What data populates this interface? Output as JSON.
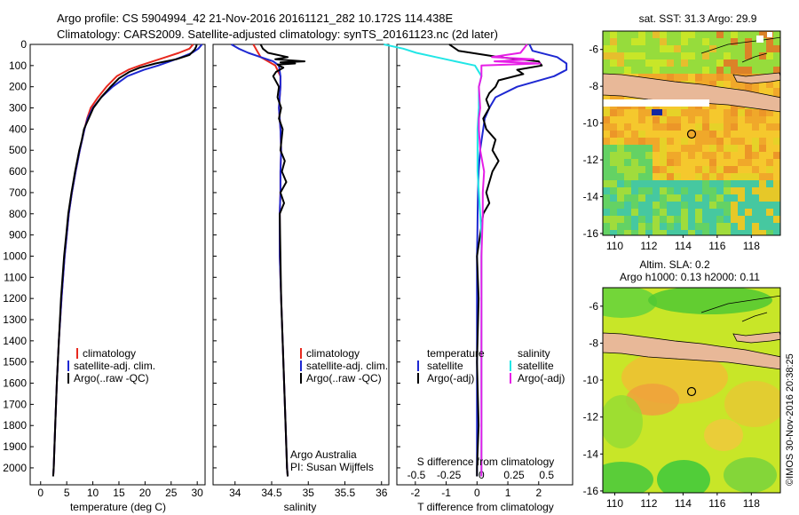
{
  "header": {
    "line1": "Argo profile: CS 5904994_42 21-Nov-2016 20161121_282 10.172S 114.438E",
    "line2": "Climatology: CARS2009. Satellite-adjusted climatology: synTS_20161123.nc (2d later)"
  },
  "colors": {
    "climatology": "#e8281e",
    "satellite": "#1e28d2",
    "argo": "#000000",
    "satellite_s": "#22e6e6",
    "argo_s": "#e61ee6"
  },
  "map_top": {
    "title": "sat. SST: 31.3 Argo: 29.9",
    "x_ticks": [
      "110",
      "112",
      "114",
      "116",
      "118"
    ],
    "y_ticks": [
      "-6",
      "-8",
      "-10",
      "-12",
      "-14",
      "-16"
    ]
  },
  "map_bottom": {
    "title1": "Altim. SLA: 0.2",
    "title2": "Argo h1000: 0.13 h2000: 0.11",
    "x_ticks": [
      "110",
      "112",
      "114",
      "116",
      "118"
    ],
    "y_ticks": [
      "-6",
      "-8",
      "-10",
      "-12",
      "-14",
      "-16"
    ]
  },
  "credit": "©IMOS 30-Nov-2016 20:38:25",
  "chart_data": [
    {
      "type": "line",
      "xlabel": "temperature (deg C)",
      "ylabel": "",
      "xlim": [
        -2,
        31.5
      ],
      "ylim": [
        2080,
        0
      ],
      "x_ticks": [
        0,
        5,
        10,
        15,
        20,
        25,
        30
      ],
      "y_ticks": [
        0,
        100,
        200,
        300,
        400,
        500,
        600,
        700,
        800,
        900,
        1000,
        1100,
        1200,
        1300,
        1400,
        1500,
        1600,
        1700,
        1800,
        1900,
        2000
      ],
      "legend": [
        "climatology",
        "satellite-adj. clim.",
        "Argo(..raw -QC)"
      ],
      "series": [
        {
          "name": "climatology",
          "color_key": "climatology",
          "depth": [
            0,
            20,
            40,
            60,
            80,
            100,
            120,
            150,
            200,
            250,
            300,
            350,
            400,
            500,
            600,
            700,
            800,
            900,
            1000,
            1200,
            1400,
            1600,
            1800,
            2000,
            2040
          ],
          "values": [
            29.2,
            28.5,
            26.5,
            24.0,
            21.5,
            19.0,
            16.8,
            14.6,
            12.6,
            11.0,
            9.6,
            8.9,
            8.4,
            7.5,
            6.7,
            6.0,
            5.4,
            5.0,
            4.6,
            4.0,
            3.5,
            3.1,
            2.8,
            2.5,
            2.4
          ]
        },
        {
          "name": "satellite-adj. clim.",
          "color_key": "satellite",
          "depth": [
            0,
            20,
            40,
            60,
            80,
            100,
            120,
            150,
            200,
            250,
            300,
            350,
            400,
            500,
            600,
            700,
            800,
            900,
            1000,
            1200,
            1400,
            1600,
            1800,
            2000,
            2040
          ],
          "values": [
            30.9,
            30.2,
            29.0,
            27.0,
            24.8,
            22.5,
            19.8,
            16.6,
            13.8,
            11.6,
            10.0,
            9.0,
            8.4,
            7.5,
            6.7,
            6.0,
            5.4,
            5.0,
            4.6,
            4.0,
            3.5,
            3.1,
            2.8,
            2.5,
            2.4
          ]
        },
        {
          "name": "Argo(..raw -QC)",
          "color_key": "argo",
          "depth": [
            0,
            10,
            25,
            50,
            70,
            90,
            110,
            130,
            160,
            200,
            250,
            300,
            350,
            400,
            450,
            500,
            600,
            700,
            800,
            900,
            1000,
            1200,
            1400,
            1600,
            1800,
            2000,
            2040
          ],
          "values": [
            29.9,
            29.8,
            29.5,
            28.5,
            26.0,
            22.0,
            19.0,
            17.0,
            15.0,
            13.4,
            11.6,
            10.1,
            9.2,
            8.3,
            7.9,
            7.4,
            6.6,
            5.9,
            5.3,
            4.9,
            4.5,
            3.9,
            3.5,
            3.1,
            2.8,
            2.5,
            2.4
          ]
        }
      ]
    },
    {
      "type": "line",
      "xlabel": "salinity",
      "ylabel": "",
      "xlim": [
        33.7,
        36.1
      ],
      "ylim": [
        2080,
        0
      ],
      "x_ticks": [
        34,
        34.5,
        35,
        35.5,
        36
      ],
      "legend": [
        "climatology",
        "satellite-adj. clim.",
        "Argo(..raw -QC)"
      ],
      "annotation": [
        "Argo Australia",
        "PI: Susan Wijffels"
      ],
      "series": [
        {
          "name": "climatology",
          "color_key": "climatology",
          "depth": [
            0,
            30,
            60,
            100,
            150,
            200,
            300,
            400,
            500,
            600,
            700,
            800,
            1000,
            1200,
            1500,
            1800,
            2000,
            2040
          ],
          "values": [
            34.25,
            34.3,
            34.35,
            34.55,
            34.62,
            34.62,
            34.6,
            34.62,
            34.63,
            34.62,
            34.62,
            34.61,
            34.61,
            34.63,
            34.66,
            34.69,
            34.71,
            34.72
          ]
        },
        {
          "name": "satellite-adj. clim.",
          "color_key": "satellite",
          "depth": [
            0,
            20,
            40,
            60,
            80,
            100,
            150,
            200,
            300,
            400,
            500,
            600,
            700,
            800,
            1000,
            1200,
            1500,
            1800,
            2000,
            2040
          ],
          "values": [
            33.95,
            34.05,
            34.18,
            34.35,
            34.52,
            34.6,
            34.62,
            34.62,
            34.6,
            34.62,
            34.63,
            34.62,
            34.62,
            34.61,
            34.61,
            34.63,
            34.66,
            34.69,
            34.71,
            34.72
          ]
        },
        {
          "name": "Argo(..raw -QC)",
          "color_key": "argo",
          "depth": [
            0,
            20,
            40,
            60,
            70,
            80,
            85,
            90,
            95,
            100,
            110,
            130,
            150,
            200,
            250,
            300,
            350,
            400,
            500,
            550,
            600,
            650,
            700,
            750,
            800,
            1000,
            1200,
            1500,
            1800,
            2000,
            2040
          ],
          "values": [
            34.35,
            34.38,
            34.45,
            34.72,
            34.55,
            34.95,
            34.62,
            34.82,
            34.58,
            34.6,
            34.66,
            34.56,
            34.52,
            34.6,
            34.58,
            34.63,
            34.6,
            34.65,
            34.62,
            34.68,
            34.64,
            34.7,
            34.62,
            34.67,
            34.61,
            34.62,
            34.63,
            34.66,
            34.69,
            34.71,
            34.72
          ]
        }
      ]
    },
    {
      "type": "line",
      "xlabel": "T difference from climatology",
      "xlabel_top": "S difference from climatology",
      "xlim": [
        -2.6,
        3.1
      ],
      "ylim": [
        2080,
        0
      ],
      "x_ticks": [
        -2,
        -1,
        0,
        1,
        2
      ],
      "x_ticks_s": [
        -0.5,
        -0.25,
        0,
        0.25,
        0.5
      ],
      "x_ticks_s_labels": [
        "-0.5",
        "-0.25",
        "0",
        "0.25",
        "0.5"
      ],
      "legend_t_title": "temperature",
      "legend_s_title": "salinity",
      "legend_t": [
        "satellite",
        "Argo(-adj)"
      ],
      "legend_s": [
        "satellite",
        "Argo(-adj)"
      ],
      "series": [
        {
          "name": "satellite",
          "color_key": "satellite",
          "depth": [
            0,
            30,
            60,
            90,
            120,
            150,
            200,
            250,
            300,
            350,
            400,
            450,
            500,
            600,
            700,
            800,
            900,
            1000,
            1200,
            1500,
            1800,
            2000,
            2040
          ],
          "values": [
            1.7,
            1.8,
            2.6,
            2.9,
            2.9,
            2.5,
            1.3,
            0.6,
            0.4,
            0.25,
            0.2,
            0.15,
            0.1,
            0.05,
            0.03,
            0.02,
            0.01,
            0.0,
            0.0,
            0.0,
            0.0,
            0.0,
            0.0
          ]
        },
        {
          "name": "Argo(-adj)",
          "color_key": "argo",
          "depth": [
            0,
            30,
            60,
            80,
            100,
            120,
            140,
            170,
            200,
            230,
            260,
            300,
            350,
            400,
            450,
            500,
            550,
            600,
            650,
            700,
            750,
            800,
            900,
            1000,
            1200,
            1500,
            1800,
            2000,
            2040
          ],
          "values": [
            -0.9,
            -0.6,
            0.7,
            2.0,
            2.1,
            1.3,
            1.5,
            0.7,
            0.6,
            0.4,
            0.3,
            0.4,
            0.2,
            0.3,
            0.6,
            0.5,
            0.7,
            0.5,
            0.4,
            0.3,
            0.4,
            0.2,
            0.1,
            0.0,
            0.05,
            0.0,
            0.05,
            0.0,
            0.0
          ]
        },
        {
          "name": "satellite (S)",
          "color_key": "satellite_s",
          "depth": [
            0,
            20,
            40,
            60,
            80,
            100,
            150,
            200,
            300,
            400,
            500,
            600,
            700,
            800,
            900,
            1000,
            1200,
            1500,
            1800,
            2000,
            2040
          ],
          "values": [
            -0.75,
            -0.6,
            -0.5,
            -0.35,
            -0.2,
            -0.05,
            0.0,
            -0.02,
            -0.02,
            -0.03,
            -0.03,
            -0.03,
            -0.02,
            -0.01,
            0.0,
            0.0,
            0.0,
            0.0,
            0.0,
            0.0,
            0.0
          ]
        },
        {
          "name": "Argo(-adj) (S)",
          "color_key": "argo_s",
          "depth": [
            0,
            40,
            60,
            70,
            80,
            90,
            100,
            150,
            200,
            300,
            350,
            400,
            500,
            600,
            700,
            800,
            1000,
            1200,
            1500,
            1800,
            2000,
            2040
          ],
          "values": [
            0.35,
            0.3,
            0.08,
            0.4,
            0.1,
            0.45,
            0.0,
            0.0,
            -0.02,
            -0.01,
            -0.02,
            -0.02,
            -0.01,
            0.02,
            0.01,
            0.01,
            0.0,
            0.0,
            0.0,
            0.0,
            0.0,
            0.0
          ]
        }
      ]
    }
  ]
}
